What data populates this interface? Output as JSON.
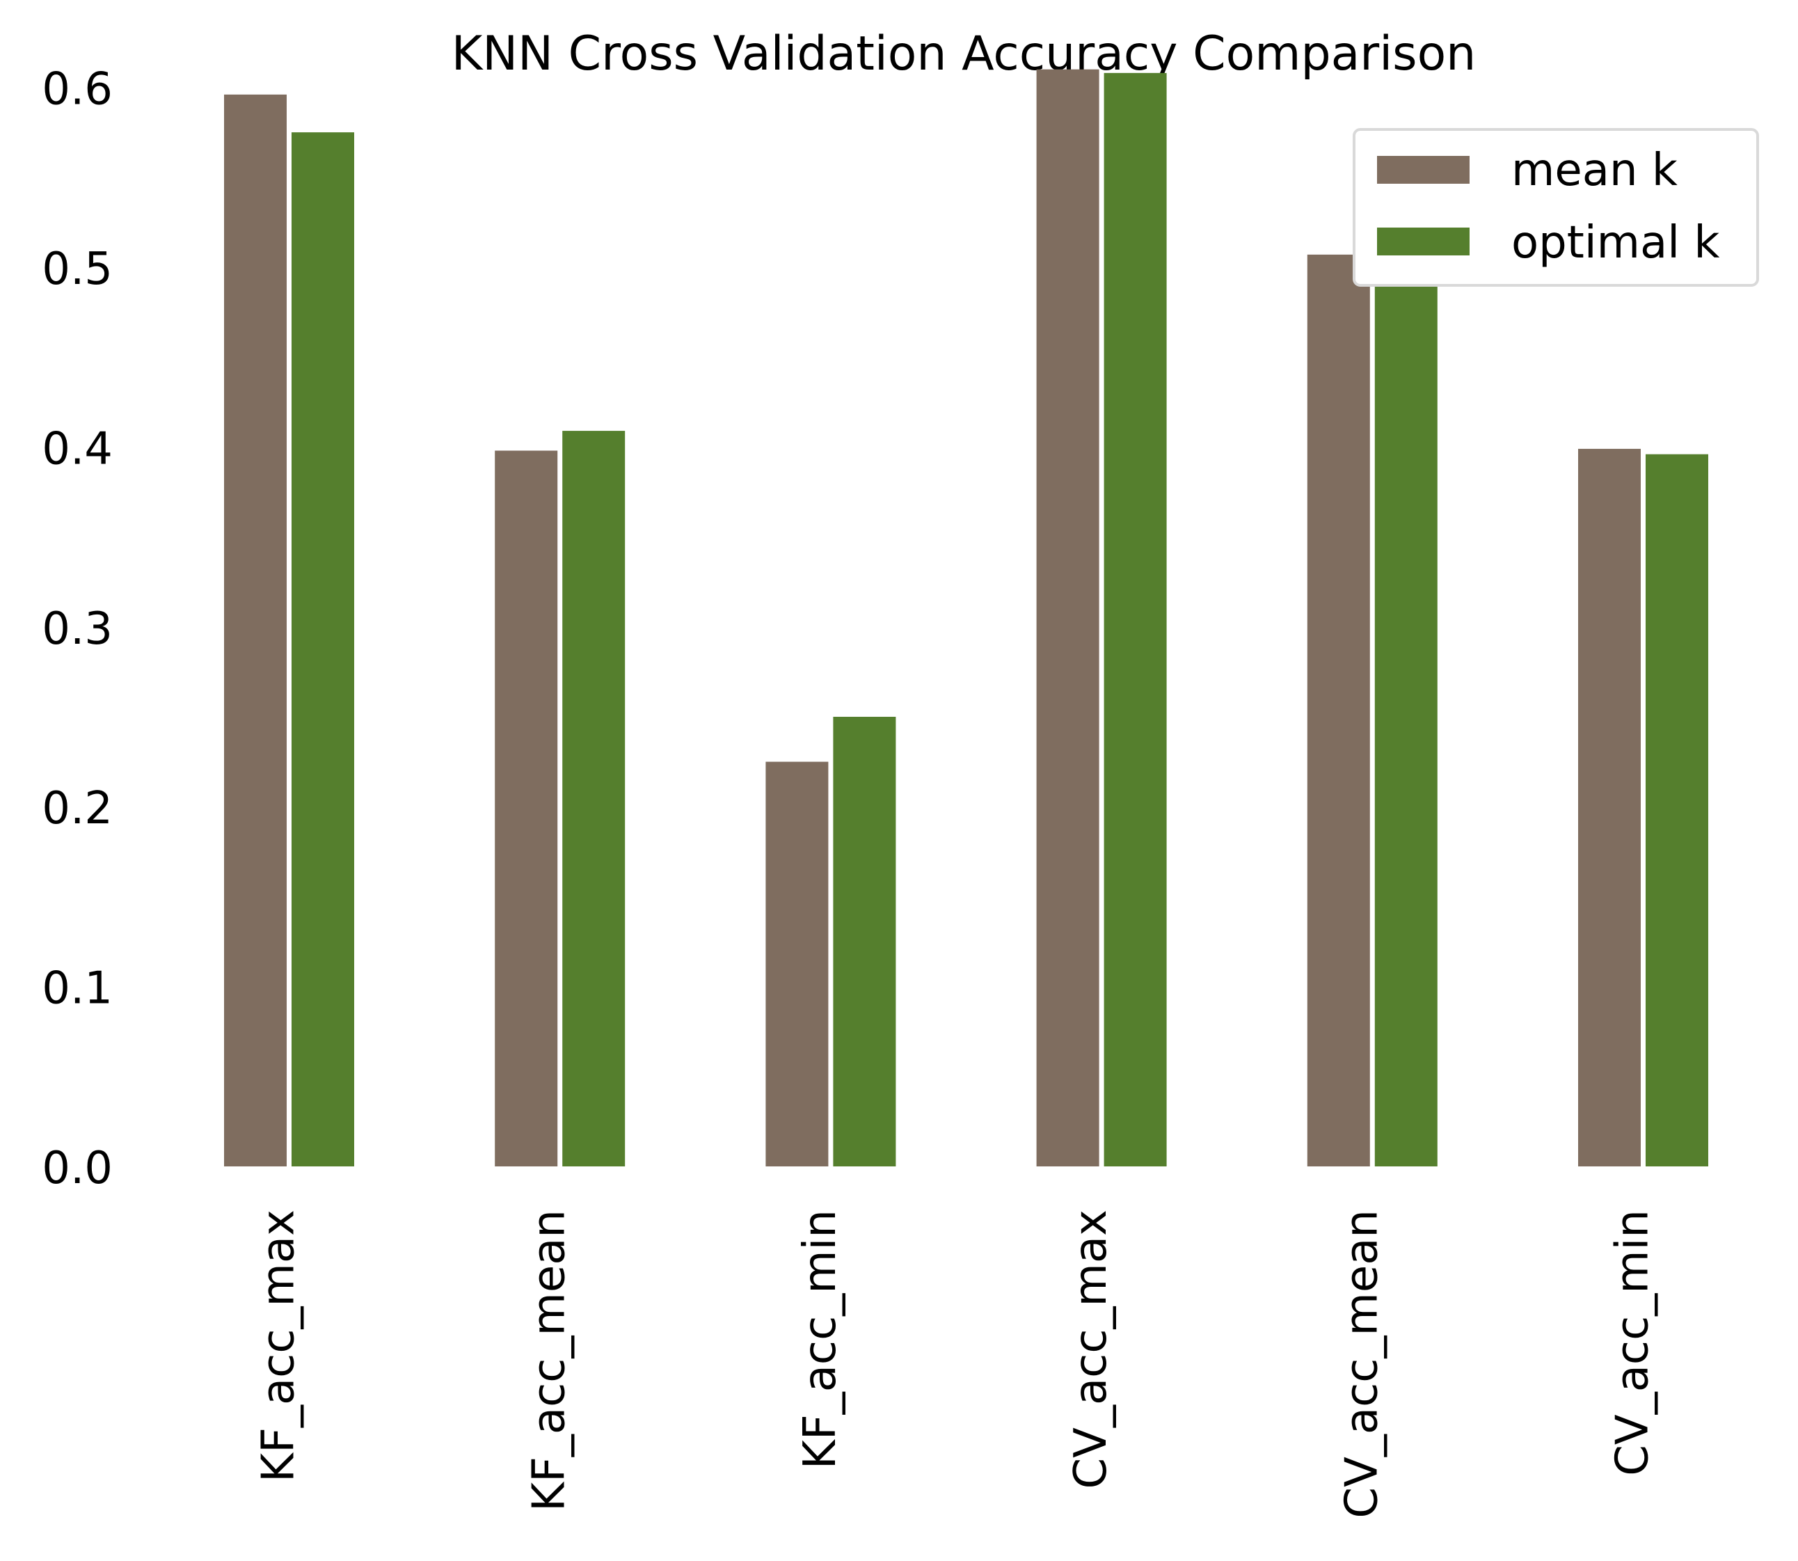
{
  "chart_data": {
    "type": "bar",
    "title": "KNN Cross Validation Accuracy Comparison",
    "xlabel": "",
    "ylabel": "",
    "categories": [
      "KF_acc_max",
      "KF_acc_mean",
      "KF_acc_min",
      "CV_acc_max",
      "CV_acc_mean",
      "CV_acc_min"
    ],
    "series": [
      {
        "name": "mean k",
        "color": "#7f6d5f",
        "values": [
          0.596,
          0.398,
          0.225,
          0.61,
          0.507,
          0.399
        ]
      },
      {
        "name": "optimal k",
        "color": "#557f2d",
        "values": [
          0.575,
          0.409,
          0.25,
          0.608,
          0.506,
          0.396
        ]
      }
    ],
    "ylim": [
      0,
      0.63
    ],
    "yticks": [
      0.0,
      0.1,
      0.2,
      0.3,
      0.4,
      0.5,
      0.6
    ],
    "ytick_labels": [
      "0.0",
      "0.1",
      "0.2",
      "0.3",
      "0.4",
      "0.5",
      "0.6"
    ],
    "xtick_rotation": "vertical",
    "grid": false,
    "legend": {
      "placement": "top-right",
      "entries": [
        "mean k",
        "optimal k"
      ]
    }
  }
}
